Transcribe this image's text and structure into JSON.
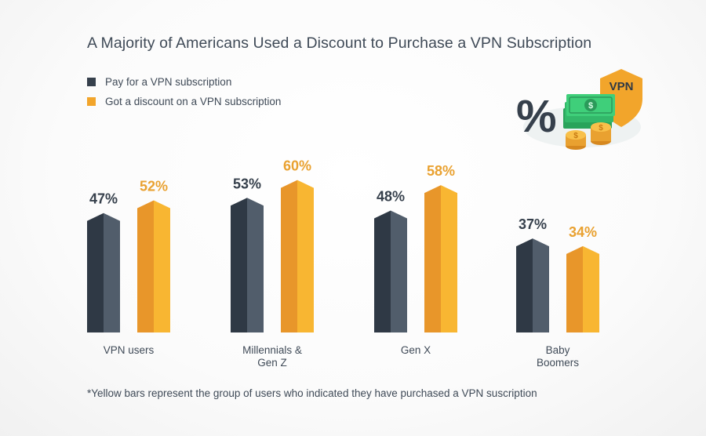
{
  "title": "A Majority of Americans Used a Discount to Purchase a VPN Subscription",
  "legend": [
    {
      "label": "Pay for a VPN subscription",
      "color": "#36404c"
    },
    {
      "label": "Got a discount on a VPN subscription",
      "color": "#f2a52b"
    }
  ],
  "footnote": "*Yellow bars represent the group of users who indicated they have purchased a VPN suscription",
  "illustration": {
    "badge_text": "VPN",
    "symbol": "%",
    "dollar_sign": "$"
  },
  "colors": {
    "dark_left": "#2f3945",
    "dark_right": "#515d6b",
    "orange_left": "#e8962a",
    "orange_right": "#f8b632",
    "value_dark": "#36404c",
    "value_orange": "#e9a130"
  },
  "chart_data": {
    "type": "bar",
    "categories": [
      "VPN users",
      "Millennials & Gen Z",
      "Gen X",
      "Baby Boomers"
    ],
    "category_lines": [
      [
        "VPN users"
      ],
      [
        "Millennials &",
        "Gen Z"
      ],
      [
        "Gen X"
      ],
      [
        "Baby",
        "Boomers"
      ]
    ],
    "series": [
      {
        "name": "Pay for a VPN subscription",
        "values": [
          47,
          53,
          48,
          37
        ],
        "labels": [
          "47%",
          "53%",
          "48%",
          "37%"
        ]
      },
      {
        "name": "Got a discount on a VPN subscription",
        "values": [
          52,
          60,
          58,
          34
        ],
        "labels": [
          "52%",
          "60%",
          "58%",
          "34%"
        ]
      }
    ],
    "ylim": [
      0,
      100
    ]
  }
}
